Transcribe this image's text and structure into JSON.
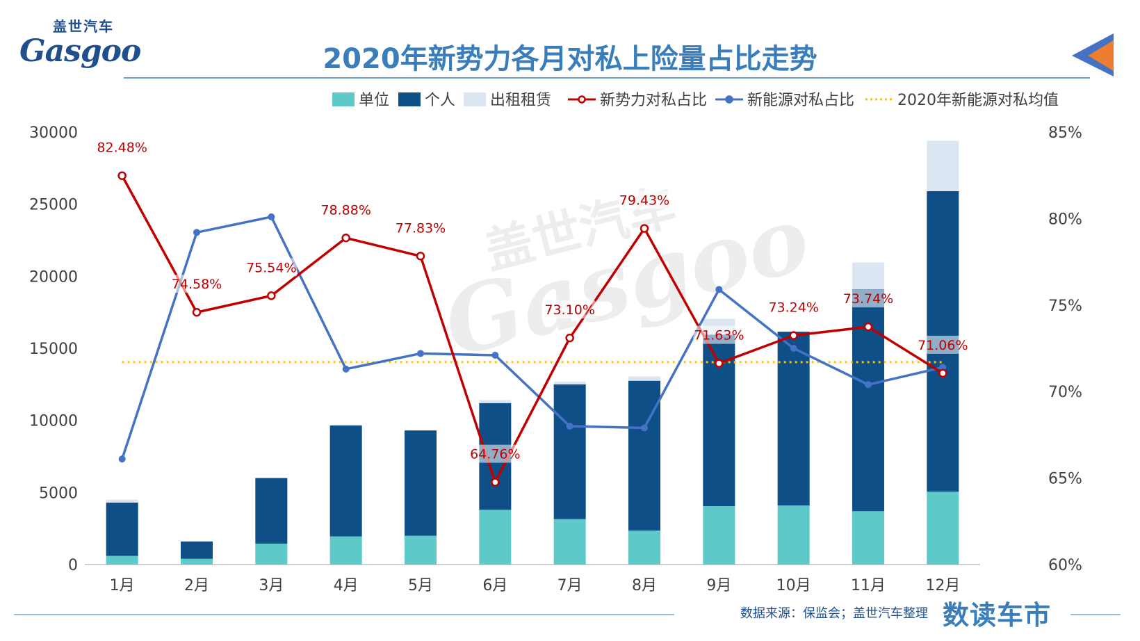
{
  "header": {
    "logo_text": "Gasgoo",
    "logo_cn": "盖世汽车",
    "title": "2020年新势力各月对私上险量占比走势"
  },
  "footer": {
    "source": "数据来源：保监会；盖世汽车整理",
    "brand": "数读车市"
  },
  "colors": {
    "unit": "#5ec9c9",
    "personal": "#0e4f87",
    "rental": "#dce6f2",
    "new_force_line": "#c00000",
    "nev_line": "#4472c4",
    "avg_line": "#ffc000",
    "title": "#3a7dbb",
    "accent_arrow": "#ed7d31"
  },
  "chart_data": {
    "type": "bar",
    "categories": [
      "1月",
      "2月",
      "3月",
      "4月",
      "5月",
      "6月",
      "7月",
      "8月",
      "9月",
      "10月",
      "11月",
      "12月"
    ],
    "y_left": {
      "ticks": [
        "0",
        "5000",
        "10000",
        "15000",
        "20000",
        "25000",
        "30000"
      ],
      "range": [
        0,
        30000
      ]
    },
    "y_right": {
      "ticks": [
        "60%",
        "65%",
        "70%",
        "75%",
        "80%",
        "85%"
      ],
      "range": [
        60,
        85
      ]
    },
    "stacked_series": [
      {
        "name": "单位",
        "values": [
          600,
          400,
          1450,
          1950,
          2000,
          3800,
          3150,
          2350,
          4050,
          4100,
          3700,
          5050
        ]
      },
      {
        "name": "个人",
        "values": [
          3700,
          1200,
          4550,
          7700,
          7300,
          7400,
          9350,
          10400,
          11900,
          12050,
          15400,
          20850
        ]
      },
      {
        "name": "出租租赁",
        "values": [
          200,
          0,
          0,
          0,
          0,
          200,
          200,
          300,
          1100,
          0,
          1850,
          3500
        ]
      }
    ],
    "line_series": [
      {
        "name": "新势力对私占比",
        "values": [
          82.48,
          74.58,
          75.54,
          78.88,
          77.83,
          64.76,
          73.1,
          79.43,
          71.63,
          73.24,
          73.74,
          71.06
        ],
        "labels": [
          "82.48%",
          "74.58%",
          "75.54%",
          "78.88%",
          "77.83%",
          "64.76%",
          "73.10%",
          "79.43%",
          "71.63%",
          "73.24%",
          "73.74%",
          "71.06%"
        ]
      },
      {
        "name": "新能源对私占比",
        "values": [
          66.1,
          79.2,
          80.1,
          71.3,
          72.2,
          72.1,
          68.0,
          67.9,
          75.9,
          72.5,
          70.4,
          71.4
        ]
      }
    ],
    "average_line": {
      "name": "2020年新能源对私均值",
      "value": 71.7
    },
    "legend": [
      "单位",
      "个人",
      "出租租赁",
      "新势力对私占比",
      "新能源对私占比",
      "2020年新能源对私均值"
    ]
  }
}
